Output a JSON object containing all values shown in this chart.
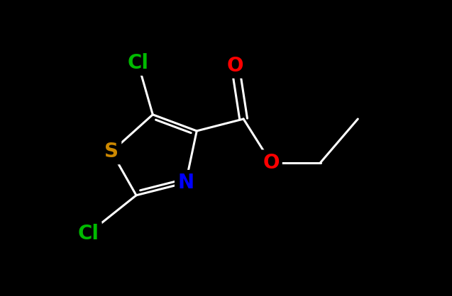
{
  "background_color": "#000000",
  "figsize": [
    6.37,
    4.18
  ],
  "dpi": 100,
  "atom_colors": {
    "S": "#cc8800",
    "N": "#0000ff",
    "Cl": "#00bb00",
    "O": "#ff0000",
    "C": "#ffffff"
  },
  "bond_color": "#ffffff",
  "bond_lw": 2.2,
  "label_fontsize": 20
}
